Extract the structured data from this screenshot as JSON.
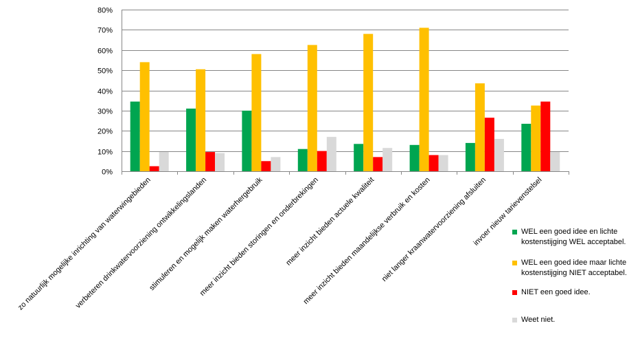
{
  "chart_data": {
    "type": "bar",
    "categories": [
      "zo natuurlijk mogelijke inrichting van waterwingebieden",
      "verbeteren drinkwatervoorziening ontwikkelingslanden",
      "stimuleren en mogelijk maken waterhergebruik",
      "meer inzicht bieden storingen en onderbrekingen",
      "meer inzicht bieden actuele kwaliteit",
      "meer inzicht bieden maandelijkse verbruik en kosten",
      "niet langer kraanwatervoorziening afsluiten",
      "invoer nieuw tarievenstelsel"
    ],
    "series": [
      {
        "name": "WEL een goed idee en lichte kostenstijging WEL acceptabel.",
        "color": "#00A550",
        "values": [
          34.5,
          31,
          30,
          11,
          13.5,
          13,
          14,
          23.5
        ]
      },
      {
        "name": "WEL een goed idee maar lichte kostenstijging NIET acceptabel.",
        "color": "#FFC000",
        "values": [
          54,
          50.5,
          58,
          62.5,
          68,
          71,
          43.5,
          32.5
        ]
      },
      {
        "name": "NIET een goed idee.",
        "color": "#FF0000",
        "values": [
          2.5,
          9.5,
          5,
          10,
          7,
          8,
          26.5,
          34.5
        ]
      },
      {
        "name": "Weet niet.",
        "color": "#D9D9D9",
        "values": [
          9.5,
          9,
          7,
          17,
          11.5,
          8,
          16,
          9.5
        ]
      }
    ],
    "y_ticks": [
      "0%",
      "10%",
      "20%",
      "30%",
      "40%",
      "50%",
      "60%",
      "70%",
      "80%"
    ],
    "ylim": [
      0,
      80
    ],
    "grid": true,
    "legend_position": "right"
  },
  "legend": [
    {
      "line1": "WEL een goed idee en lichte",
      "line2": "kostenstijging WEL acceptabel."
    },
    {
      "line1": "WEL een goed idee maar lichte",
      "line2": "kostenstijging NIET acceptabel."
    },
    {
      "line1": "NIET een goed idee.",
      "line2": ""
    },
    {
      "line1": "Weet niet.",
      "line2": ""
    }
  ]
}
